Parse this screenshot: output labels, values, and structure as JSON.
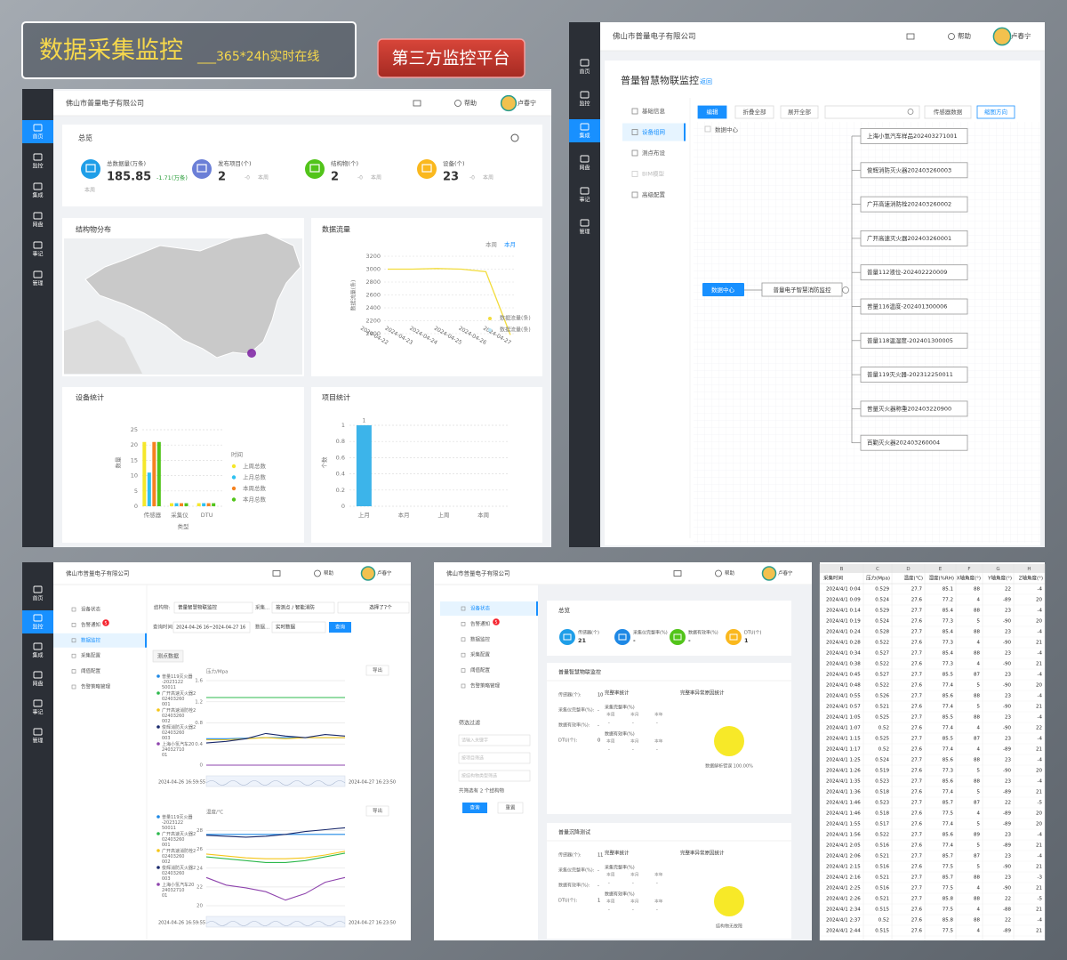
{
  "banner": {
    "title": "数据采集监控",
    "subtitle": "___365*24h实时在线",
    "button": "第三方监控平台"
  },
  "header": {
    "company": "佛山市普量电子有限公司",
    "help": "帮助",
    "user": "卢春宁"
  },
  "nav": [
    "首页",
    "监控",
    "集成",
    "网盘",
    "事记",
    "管理"
  ],
  "dashboard": {
    "overview": "总览",
    "stats": [
      {
        "label": "总数据量(万条)",
        "value": "185.85",
        "delta": "-1.71(万条)",
        "period": "本周",
        "color": "#1e9ee8"
      },
      {
        "label": "发布项目(个)",
        "value": "2",
        "delta": "-0",
        "period": "本周",
        "color": "#6b7fd7"
      },
      {
        "label": "结构物(个)",
        "value": "2",
        "delta": "-0",
        "period": "本周",
        "color": "#52c41a"
      },
      {
        "label": "设备(个)",
        "value": "23",
        "delta": "-0",
        "period": "本周",
        "color": "#fab81e"
      }
    ],
    "map_title": "结构物分布",
    "flow_chart": {
      "type": "line",
      "title": "数据流量",
      "tabs": [
        "本周",
        "本月"
      ],
      "y_label": "数据流量(条)",
      "categories": [
        "2024-04-22",
        "2024-04-23",
        "2024-04-24",
        "2024-04-25",
        "2024-04-26",
        "2024-04-27"
      ],
      "series": [
        {
          "name": "数据流量(条)",
          "color": "#f2dc3c",
          "values": [
            3000,
            3000,
            3010,
            3000,
            2960,
            1980
          ]
        },
        {
          "name": "数据流量(条)",
          "color": "#bfe6f5",
          "values": [
            null,
            null,
            null,
            null,
            null,
            null
          ]
        }
      ],
      "ylim": [
        2000,
        3200
      ],
      "yticks": [
        2000,
        2200,
        2400,
        2600,
        2800,
        3000,
        3200
      ]
    },
    "device_chart": {
      "type": "bar",
      "title": "设备统计",
      "y_label": "数量",
      "x_label": "类型",
      "legend_title": "时间",
      "categories": [
        "传感器",
        "采集仪",
        "DTU"
      ],
      "series": [
        {
          "name": "上周总数",
          "color": "#f5e72a",
          "values": [
            21,
            1,
            1
          ]
        },
        {
          "name": "上月总数",
          "color": "#2fc1f0",
          "values": [
            11,
            1,
            1
          ]
        },
        {
          "name": "本周总数",
          "color": "#f5821f",
          "values": [
            21,
            1,
            1
          ]
        },
        {
          "name": "本月总数",
          "color": "#52c41a",
          "values": [
            21,
            1,
            1
          ]
        }
      ],
      "ylim": [
        0,
        25
      ],
      "yticks": [
        0,
        5,
        10,
        15,
        20,
        25
      ]
    },
    "project_chart": {
      "type": "bar",
      "title": "项目统计",
      "y_label": "个数",
      "categories": [
        "上月",
        "本月",
        "上周",
        "本周"
      ],
      "values": [
        1,
        0,
        0,
        0
      ],
      "color": "#3cb4ea",
      "ylim": [
        0,
        1
      ],
      "yticks": [
        0,
        0.2,
        0.4,
        0.6,
        0.8,
        1
      ]
    }
  },
  "topology": {
    "title": "普量智慧物联监控",
    "back": "返回",
    "menu": [
      "基础信息",
      "设备组网",
      "测点布设",
      "BIM模型",
      "高级配置"
    ],
    "toolbar": [
      "编辑",
      "折叠全部",
      "展开全部",
      "传感器数据",
      "缩图方向"
    ],
    "tree_root": "数据中心",
    "root": "数据中心",
    "project": "普量电子智慧消防监控",
    "devices": [
      "上海小氢汽车样品202403271001",
      "俊辉消防灭火器202403260003",
      "广开高速消防栓202403260002",
      "广开高速灭火器202403260001",
      "普量112液位-202402220009",
      "普量116温度-202401300006",
      "普量118温湿度-202401300005",
      "普量119灭火器-202312250011",
      "普量灭火器称重202403220900",
      "百勤灭火器202403260004"
    ]
  },
  "monitor": {
    "menu": [
      "设备状态",
      "告警通知",
      "数据监控",
      "采集配置",
      "阈值配置",
      "告警策略管理"
    ],
    "alarm_badge": "5",
    "filters": {
      "structure_label": "结构物:",
      "structure": "普量智慧物联监控",
      "collect_label": "采集...",
      "mode": "按测点 / 智能消防",
      "selected": "选择了7个",
      "time_label": "查询时间:",
      "time": "2024-04-26 16~2024-04-27 16",
      "data_label": "数据...",
      "data": "实时数据",
      "query": "查询"
    },
    "tab": "测点数据",
    "export": "导出",
    "pressure_chart": {
      "type": "line",
      "title": "压力/Mpa",
      "range": [
        "2024-04-26 16:59:55",
        "2024-04-27 16:23:50"
      ],
      "ylim": [
        0,
        1.6
      ],
      "yticks": [
        0,
        0.4,
        0.8,
        1.2,
        1.6
      ],
      "series": [
        {
          "name": "普量119灭火器-202312250011",
          "color": "#1e88e5",
          "values": [
            0.5,
            0.5,
            0.51,
            0.52,
            0.52,
            0.52,
            0.52,
            0.52
          ]
        },
        {
          "name": "广开高速灭火器202403260001",
          "color": "#2db84d",
          "values": [
            1.28,
            1.28,
            1.28,
            1.28,
            1.28,
            1.28,
            1.28,
            1.28
          ]
        },
        {
          "name": "广开高速消防栓202403260002",
          "color": "#f5c518",
          "values": [
            0.48,
            0.48,
            0.5,
            0.52,
            0.5,
            0.52,
            0.52,
            0.52
          ]
        },
        {
          "name": "俊辉消防灭火器202403260003",
          "color": "#1a2a6c",
          "values": [
            0.42,
            0.45,
            0.5,
            0.6,
            0.55,
            0.52,
            0.58,
            0.55
          ]
        },
        {
          "name": "上海小氢汽车202403271001",
          "color": "#8e44ad",
          "values": [
            0,
            0,
            0,
            0,
            0,
            0,
            0,
            0
          ]
        }
      ]
    },
    "temp_chart": {
      "type": "line",
      "title": "温度/℃",
      "range": [
        "2024-04-26 16:59:55",
        "2024-04-27 16:23:50"
      ],
      "ylim": [
        20,
        29
      ],
      "yticks": [
        20,
        22,
        24,
        26,
        28
      ],
      "series": [
        {
          "name": "普量119灭火器-202312250011",
          "color": "#1e88e5",
          "values": [
            27.6,
            27.6,
            27.6,
            27.6,
            27.6,
            27.6,
            27.6,
            27.6
          ]
        },
        {
          "name": "广开高速灭火器202403260001",
          "color": "#2db84d",
          "values": [
            25.2,
            25,
            24.8,
            24.6,
            24.6,
            24.8,
            25.2,
            25.6
          ]
        },
        {
          "name": "广开高速消防栓202403260002",
          "color": "#f5c518",
          "values": [
            25.5,
            25.3,
            25.1,
            25,
            25,
            25.1,
            25.4,
            25.8
          ]
        },
        {
          "name": "俊辉消防灭火器202403260003",
          "color": "#1a2a6c",
          "values": [
            27.5,
            27.4,
            27.3,
            27.4,
            27.6,
            27.9,
            28.1,
            28.3
          ]
        },
        {
          "name": "上海小氢汽车202403271001",
          "color": "#8e44ad",
          "values": [
            23,
            22.2,
            21.9,
            21.5,
            20.6,
            21.3,
            22.5,
            23
          ]
        }
      ]
    }
  },
  "quality": {
    "overview": "总览",
    "stats": [
      {
        "label": "传感器(个)",
        "value": "21",
        "color": "#1e9ee8"
      },
      {
        "label": "采集仪完整率(%)",
        "value": "-",
        "color": "#1e88e5"
      },
      {
        "label": "数据有效率(%)",
        "value": "-",
        "color": "#52c41a"
      },
      {
        "label": "DTU(个)",
        "value": "1",
        "color": "#fab81e"
      }
    ],
    "sections": [
      {
        "title": "普量智慧物联监控",
        "summary": [
          {
            "label": "传感器(个):",
            "value": "10"
          },
          {
            "label": "采集仪完整率(%):",
            "value": "-"
          },
          {
            "label": "数据有效率(%):",
            "value": "-"
          },
          {
            "label": "DTU(个):",
            "value": "0"
          }
        ],
        "pie_label": "数据解析错误 100.00%"
      },
      {
        "title": "普量沉降测试",
        "summary": [
          {
            "label": "传感器(个):",
            "value": "11"
          },
          {
            "label": "采集仪完整率(%):",
            "value": "-"
          },
          {
            "label": "数据有效率(%):",
            "value": "-"
          },
          {
            "label": "DTU(个):",
            "value": "1"
          }
        ],
        "pie_label": "结构物无故障"
      }
    ],
    "stat_title": "完整率统计",
    "rate_labels": [
      "采集完整率(%)",
      "数据有效率(%)"
    ],
    "periods": [
      "本周",
      "本月",
      "本年"
    ],
    "dash": "-",
    "reason_title": "完整率异常原因统计",
    "filter": {
      "title": "筛选过滤",
      "placeholders": [
        "请输入关键字",
        "按项目筛选",
        "按结构物类型筛选"
      ],
      "count": "共筛选有 2 个结构物",
      "query": "查询",
      "reset": "重置"
    }
  },
  "sheet": {
    "columns": [
      "B",
      "C",
      "D",
      "E",
      "F",
      "G",
      "H"
    ],
    "header": [
      "采集时间",
      "压力(Mpa)",
      "温度(℃)",
      "湿度(%RH)",
      "X轴角度(°)",
      "Y轴角度(°)",
      "Z轴角度(°)"
    ],
    "rows": [
      [
        "2024/4/1 0:04",
        0.529,
        27.7,
        85.1,
        88,
        22,
        -4
      ],
      [
        "2024/4/1 0:09",
        0.524,
        27.6,
        77.2,
        4,
        -89,
        20
      ],
      [
        "2024/4/1 0:14",
        0.529,
        27.7,
        85.4,
        88,
        23,
        -4
      ],
      [
        "2024/4/1 0:19",
        0.524,
        27.6,
        77.3,
        5,
        -90,
        20
      ],
      [
        "2024/4/1 0:24",
        0.528,
        27.7,
        85.4,
        88,
        23,
        -4
      ],
      [
        "2024/4/1 0:28",
        0.522,
        27.6,
        77.3,
        4,
        -90,
        21
      ],
      [
        "2024/4/1 0:34",
        0.527,
        27.7,
        85.4,
        88,
        23,
        -4
      ],
      [
        "2024/4/1 0:38",
        0.522,
        27.6,
        77.3,
        4,
        -90,
        21
      ],
      [
        "2024/4/1 0:45",
        0.527,
        27.7,
        85.5,
        87,
        23,
        -4
      ],
      [
        "2024/4/1 0:48",
        0.522,
        27.6,
        77.4,
        5,
        -90,
        20
      ],
      [
        "2024/4/1 0:55",
        0.526,
        27.7,
        85.6,
        88,
        23,
        -4
      ],
      [
        "2024/4/1 0:57",
        0.521,
        27.6,
        77.4,
        5,
        -90,
        21
      ],
      [
        "2024/4/1 1:05",
        0.525,
        27.7,
        85.5,
        88,
        23,
        -4
      ],
      [
        "2024/4/1 1:07",
        0.52,
        27.6,
        77.4,
        4,
        -90,
        22
      ],
      [
        "2024/4/1 1:15",
        0.525,
        27.7,
        85.5,
        87,
        23,
        -4
      ],
      [
        "2024/4/1 1:17",
        0.52,
        27.6,
        77.4,
        4,
        -89,
        21
      ],
      [
        "2024/4/1 1:25",
        0.524,
        27.7,
        85.6,
        88,
        23,
        -4
      ],
      [
        "2024/4/1 1:26",
        0.519,
        27.6,
        77.3,
        5,
        -90,
        20
      ],
      [
        "2024/4/1 1:35",
        0.523,
        27.7,
        85.6,
        88,
        23,
        -4
      ],
      [
        "2024/4/1 1:36",
        0.518,
        27.6,
        77.4,
        5,
        -89,
        21
      ],
      [
        "2024/4/1 1:46",
        0.523,
        27.7,
        85.7,
        87,
        22,
        -5
      ],
      [
        "2024/4/1 1:46",
        0.518,
        27.6,
        77.5,
        4,
        -89,
        20
      ],
      [
        "2024/4/1 1:55",
        0.517,
        27.6,
        77.4,
        5,
        -89,
        20
      ],
      [
        "2024/4/1 1:56",
        0.522,
        27.7,
        85.6,
        89,
        23,
        -4
      ],
      [
        "2024/4/1 2:05",
        0.516,
        27.6,
        77.4,
        5,
        -89,
        21
      ],
      [
        "2024/4/1 2:06",
        0.521,
        27.7,
        85.7,
        87,
        23,
        -4
      ],
      [
        "2024/4/1 2:15",
        0.516,
        27.6,
        77.5,
        5,
        -90,
        21
      ],
      [
        "2024/4/1 2:16",
        0.521,
        27.7,
        85.7,
        88,
        23,
        -3
      ],
      [
        "2024/4/1 2:25",
        0.516,
        27.7,
        77.5,
        4,
        -90,
        21
      ],
      [
        "2024/4/1 2:26",
        0.521,
        27.7,
        85.8,
        88,
        22,
        -5
      ],
      [
        "2024/4/1 2:34",
        0.515,
        27.6,
        77.5,
        4,
        -88,
        21
      ],
      [
        "2024/4/1 2:37",
        0.52,
        27.6,
        85.8,
        88,
        22,
        -4
      ],
      [
        "2024/4/1 2:44",
        0.515,
        27.6,
        77.5,
        4,
        -89,
        21
      ]
    ]
  }
}
